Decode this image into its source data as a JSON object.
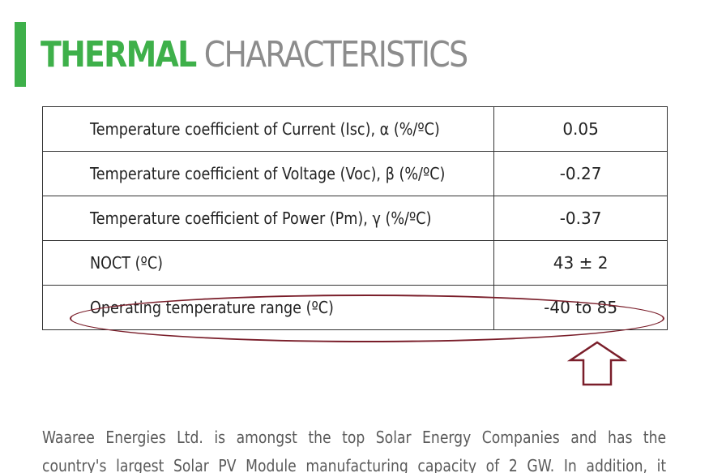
{
  "section": {
    "title_bold": "THERMAL",
    "title_light": "CHARACTERISTICS",
    "accent_color": "#3eb04a"
  },
  "table": {
    "rows": [
      {
        "parameter": "Temperature coefficient of Current (Isc), α (%/ºC)",
        "value": "0.05"
      },
      {
        "parameter": "Temperature coefficient of Voltage (Voc), β (%/ºC)",
        "value": "-0.27"
      },
      {
        "parameter": "Temperature coefficient of Power (Pm), γ (%/ºC)",
        "value": "-0.37"
      },
      {
        "parameter": "NOCT (ºC)",
        "value": "43 ± 2"
      },
      {
        "parameter": "Operating temperature range (ºC)",
        "value": "-40 to 85"
      }
    ]
  },
  "annotation": {
    "highlight_color": "#7a1e2a",
    "arrow_icon": "up-arrow-outline-icon"
  },
  "paragraph": {
    "line1": "Waaree Energies Ltd. is amongst the top Solar Energy Companies and has the",
    "line2": "country's largest Solar PV Module manufacturing capacity of 2 GW. In addition, it"
  }
}
